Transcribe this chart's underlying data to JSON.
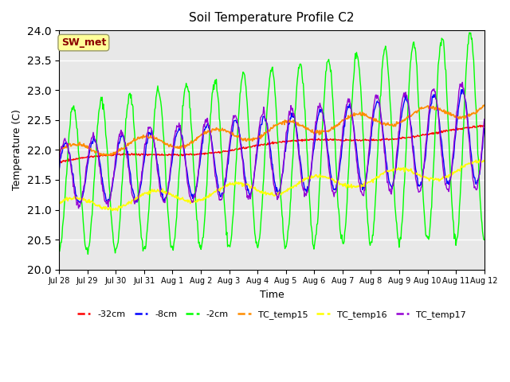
{
  "title": "Soil Temperature Profile C2",
  "xlabel": "Time",
  "ylabel": "Temperature (C)",
  "ylim": [
    20.0,
    24.0
  ],
  "yticks": [
    20.0,
    20.5,
    21.0,
    21.5,
    22.0,
    22.5,
    23.0,
    23.5,
    24.0
  ],
  "annotation_text": "SW_met",
  "annotation_color": "#8B0000",
  "annotation_bg": "#FFFF99",
  "annotation_edge": "#999966",
  "bg_color": "#E8E8E8",
  "series_colors": {
    "m32cm": "#FF0000",
    "m8cm": "#0000FF",
    "m2cm": "#00FF00",
    "TC_temp15": "#FF8C00",
    "TC_temp16": "#FFFF00",
    "TC_temp17": "#9400D3"
  },
  "legend_labels": [
    "-32cm",
    "-8cm",
    "-2cm",
    "TC_temp15",
    "TC_temp16",
    "TC_temp17"
  ],
  "xtick_labels": [
    "Jul 28",
    "Jul 29",
    "Jul 30",
    "Jul 31",
    "Aug 1",
    "Aug 2",
    "Aug 3",
    "Aug 4",
    "Aug 5",
    "Aug 6",
    "Aug 7",
    "Aug 8",
    "Aug 9",
    "Aug 10",
    "Aug 11",
    "Aug 12"
  ],
  "num_days": 15,
  "num_labels": 16
}
